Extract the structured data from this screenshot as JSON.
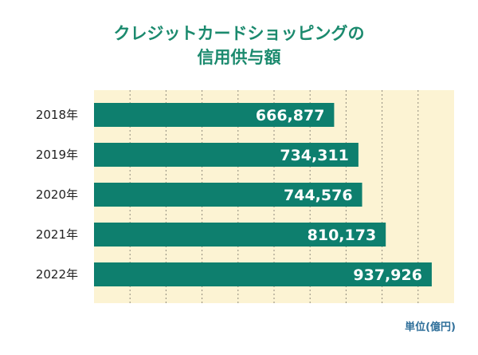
{
  "chart_data": {
    "type": "bar",
    "orientation": "horizontal",
    "title_lines": [
      "クレジットカードショッピングの",
      "信用供与額"
    ],
    "categories": [
      "2018年",
      "2019年",
      "2020年",
      "2021年",
      "2022年"
    ],
    "values": [
      666877,
      734311,
      744576,
      810173,
      937926
    ],
    "value_labels": [
      "666,877",
      "734,311",
      "744,576",
      "810,173",
      "937,926"
    ],
    "unit": "単位(億円)",
    "xlim": [
      0,
      1000000
    ],
    "grid": true,
    "legend": "none"
  },
  "colors": {
    "bar": "#0e7f6e",
    "plot_background": "#fcf3d3",
    "grid": "#8f8a7c",
    "title": "#1b8a6e",
    "axis_text": "#222222",
    "value_text": "#ffffff",
    "unit_text": "#2f6f9a"
  }
}
